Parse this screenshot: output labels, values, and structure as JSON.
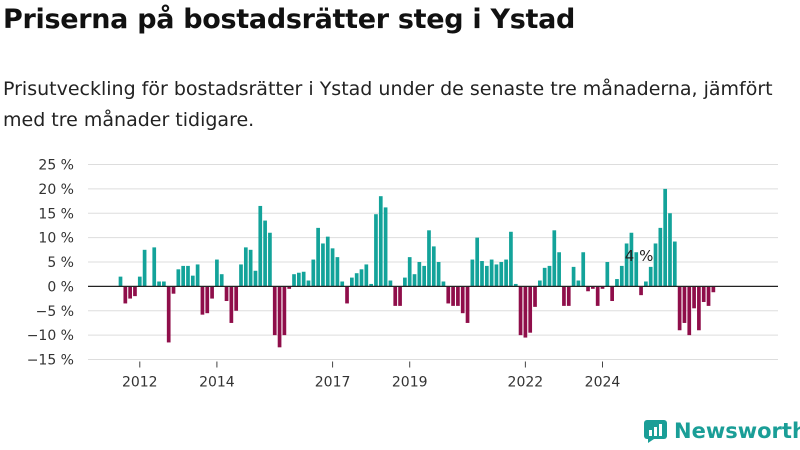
{
  "header": {
    "title": "Priserna på bostadsrätter steg i Ystad",
    "subtitle": "Prisutveckling för bostadsrätter i Ystad under de senaste tre månaderna, jämfört med tre månader tidigare."
  },
  "brand": {
    "name": "Newsworthy"
  },
  "chart_data": {
    "type": "bar",
    "title": "",
    "xlabel": "",
    "ylabel": "",
    "ylim": [
      -15,
      25
    ],
    "yticks": [
      -15,
      -10,
      -5,
      0,
      5,
      10,
      15,
      20,
      25
    ],
    "ytick_labels": [
      "−15 %",
      "−10 %",
      "−5 %",
      "0 %",
      "5 %",
      "10 %",
      "15 %",
      "20 %",
      "25 %"
    ],
    "xtick_labels": [
      "2012",
      "2014",
      "2017",
      "2019",
      "2022",
      "2024"
    ],
    "xtick_index": [
      4,
      20,
      44,
      60,
      84,
      100
    ],
    "grid": "horizontal",
    "colors": {
      "positive": "#13a39a",
      "negative": "#8f0e4a",
      "zero_line": "#222222",
      "grid": "#dddddd"
    },
    "annotation": {
      "text": "4 %",
      "index": 108
    },
    "values": [
      2,
      -3.5,
      -2.5,
      -2,
      2,
      7.5,
      0,
      8,
      1,
      1,
      -11.5,
      -1.5,
      3.5,
      4.2,
      4.2,
      2.2,
      4.5,
      -5.8,
      -5.5,
      -2.5,
      5.5,
      2.5,
      -3,
      -7.5,
      -5,
      4.5,
      8,
      7.5,
      3.2,
      16.5,
      13.5,
      11,
      -10,
      -12.5,
      -10,
      -0.5,
      2.5,
      2.8,
      3,
      1.2,
      5.5,
      12,
      8.8,
      10.2,
      7.8,
      6,
      1,
      -3.5,
      1.8,
      2.7,
      3.5,
      4.5,
      0.5,
      14.8,
      18.5,
      16.2,
      1.2,
      -4,
      -4,
      1.8,
      6,
      2.5,
      5,
      4.2,
      11.5,
      8.2,
      5,
      1,
      -3.5,
      -4,
      -4,
      -5.5,
      -7.5,
      5.5,
      10,
      5.2,
      4.2,
      5.5,
      4.5,
      5,
      5.5,
      11.2,
      0.5,
      -10,
      -10.5,
      -9.5,
      -4.2,
      1.2,
      3.8,
      4.2,
      11.5,
      7,
      -4,
      -4,
      4,
      1.2,
      7,
      -1,
      -0.5,
      -4,
      -0.5,
      5,
      -3,
      1.5,
      4.2,
      8.8,
      11,
      7,
      -1.8,
      1,
      4,
      8.8,
      12,
      20,
      15,
      9.2,
      -9,
      -7.5,
      -10,
      -4.5,
      -9,
      -3.2,
      -4,
      -1.2
    ]
  }
}
